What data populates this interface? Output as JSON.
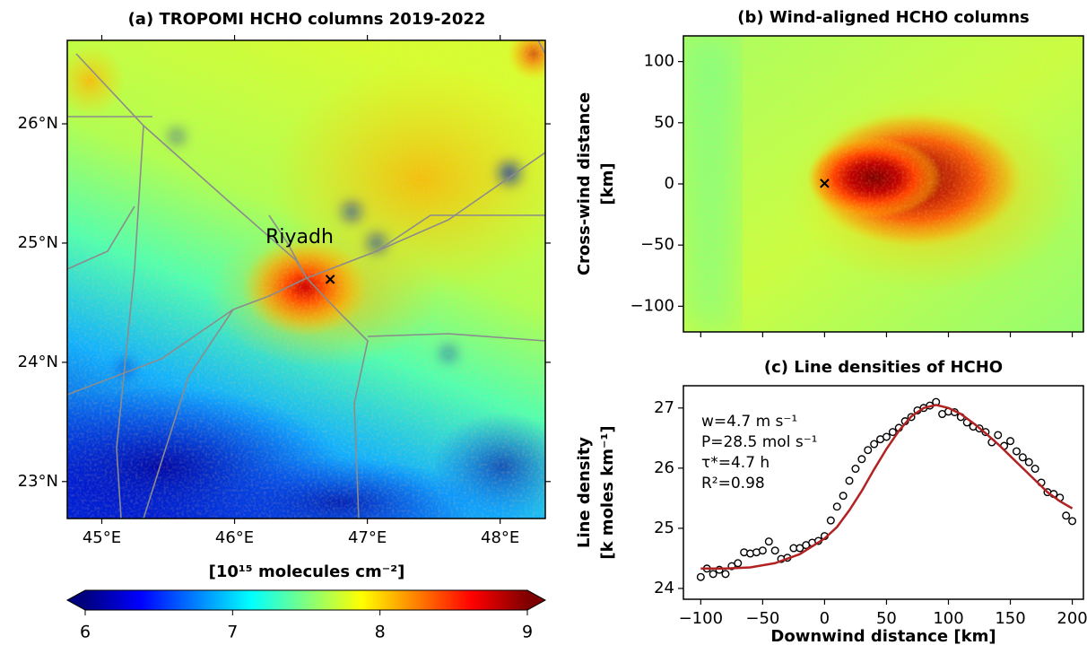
{
  "chart_data": [
    {
      "type": "heatmap",
      "title": "(a) TROPOMI HCHO columns 2019-2022",
      "xlim": [
        44.74,
        48.34
      ],
      "ylim": [
        22.69,
        26.7
      ],
      "xticks": [
        {
          "value": 45,
          "label": "45°E"
        },
        {
          "value": 46,
          "label": "46°E"
        },
        {
          "value": 47,
          "label": "47°E"
        },
        {
          "value": 48,
          "label": "48°E"
        }
      ],
      "yticks": [
        {
          "value": 23,
          "label": "23°N"
        },
        {
          "value": 24,
          "label": "24°N"
        },
        {
          "value": 25,
          "label": "25°N"
        },
        {
          "value": 26,
          "label": "26°N"
        }
      ],
      "annotations": [
        "Riyadh"
      ],
      "marker": {
        "x": 46.72,
        "y": 24.69
      },
      "colorbar": {
        "label": "[10¹⁵ molecules cm⁻²]",
        "lim": [
          6,
          9
        ],
        "ticks": [
          6,
          7,
          8,
          9
        ]
      }
    },
    {
      "type": "heatmap",
      "title": "(b) Wind-aligned HCHO columns",
      "ylabel": [
        "Cross-wind distance",
        "[km]"
      ],
      "xlim": [
        -114,
        209
      ],
      "ylim": [
        -121,
        121
      ],
      "xticks": [
        -100,
        -50,
        0,
        50,
        100,
        150,
        200
      ],
      "yticks": [
        {
          "value": -100,
          "label": "−100"
        },
        {
          "value": -50,
          "label": "−50"
        },
        0,
        50,
        100
      ],
      "marker": {
        "x": 0,
        "y": 0
      }
    },
    {
      "type": "scatter",
      "title": "(c) Line densities of HCHO",
      "xlabel": "Downwind distance [km]",
      "ylabel": [
        "Line density",
        "[k moles km⁻¹]"
      ],
      "xlim": [
        -114,
        209
      ],
      "ylim": [
        23.82,
        27.37
      ],
      "xticks": [
        {
          "value": -100,
          "label": "−100"
        },
        {
          "value": -50,
          "label": "−50"
        },
        0,
        50,
        100,
        150,
        200
      ],
      "yticks": [
        24,
        25,
        26,
        27
      ],
      "annotations": [
        "w=4.7 m s⁻¹",
        "P=28.5 mol s⁻¹",
        "τ*=4.7 h",
        "R²=0.98"
      ],
      "series": [
        {
          "style": "markers",
          "color": "#000000",
          "x": [
            -100,
            -95,
            -90,
            -85,
            -80,
            -75,
            -70,
            -65,
            -60,
            -55,
            -50,
            -45,
            -40,
            -35,
            -30,
            -25,
            -20,
            -15,
            -10,
            -5,
            0,
            5,
            10,
            15,
            20,
            25,
            30,
            35,
            40,
            45,
            50,
            55,
            60,
            65,
            70,
            75,
            80,
            85,
            90,
            95,
            100,
            105,
            110,
            115,
            120,
            125,
            130,
            135,
            140,
            145,
            150,
            155,
            160,
            165,
            170,
            175,
            180,
            185,
            190,
            195,
            200
          ],
          "values": [
            24.19,
            24.33,
            24.24,
            24.31,
            24.24,
            24.37,
            24.42,
            24.6,
            24.58,
            24.6,
            24.63,
            24.78,
            24.63,
            24.49,
            24.51,
            24.67,
            24.67,
            24.72,
            24.76,
            24.79,
            24.87,
            25.13,
            25.36,
            25.54,
            25.79,
            25.99,
            26.15,
            26.3,
            26.4,
            26.48,
            26.52,
            26.6,
            26.67,
            26.78,
            26.85,
            26.96,
            27.0,
            27.04,
            27.1,
            26.9,
            26.94,
            26.93,
            26.85,
            26.76,
            26.69,
            26.66,
            26.6,
            26.43,
            26.55,
            26.37,
            26.45,
            26.28,
            26.18,
            26.1,
            25.99,
            25.76,
            25.6,
            25.57,
            25.51,
            25.21,
            25.12
          ]
        },
        {
          "style": "line",
          "color": "#b22222",
          "x": [
            -100,
            -80,
            -60,
            -40,
            -20,
            0,
            10,
            20,
            30,
            40,
            50,
            60,
            70,
            80,
            90,
            100,
            110,
            120,
            130,
            140,
            150,
            160,
            170,
            180,
            190,
            200
          ],
          "values": [
            24.33,
            24.33,
            24.35,
            24.42,
            24.57,
            24.83,
            25.02,
            25.3,
            25.62,
            25.98,
            26.32,
            26.62,
            26.86,
            27.0,
            27.05,
            27.0,
            26.9,
            26.75,
            26.58,
            26.4,
            26.2,
            26.0,
            25.8,
            25.6,
            25.45,
            25.33
          ]
        }
      ]
    }
  ]
}
